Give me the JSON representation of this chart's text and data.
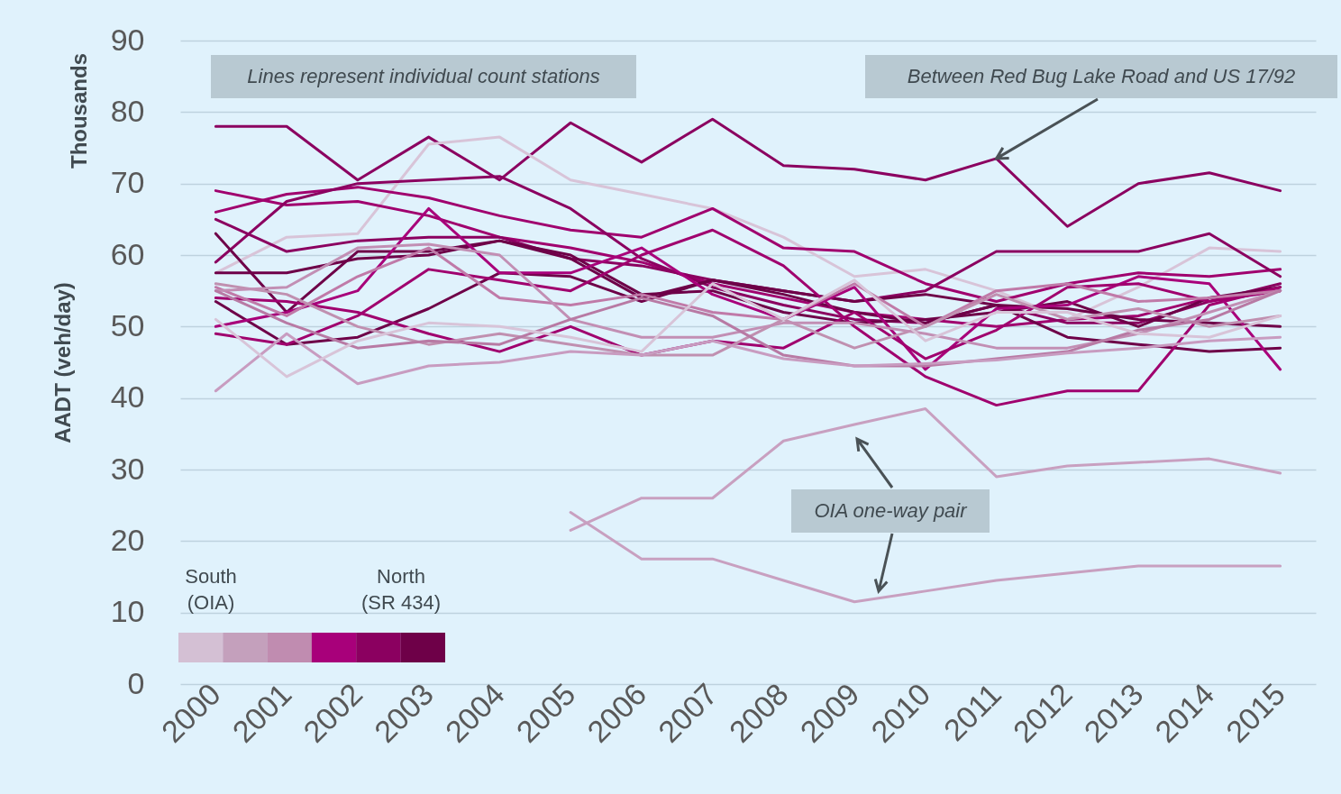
{
  "chart_data": {
    "type": "line",
    "ylabel": "AADT (veh/day)",
    "categories": [
      "2000",
      "2001",
      "2002",
      "2003",
      "2004",
      "2005",
      "2006",
      "2007",
      "2008",
      "2009",
      "2010",
      "2011",
      "2012",
      "2013",
      "2014",
      "2015"
    ],
    "ylim": [
      0,
      90
    ],
    "yticks": [
      0,
      10,
      20,
      30,
      40,
      50,
      60,
      70,
      80,
      90
    ],
    "grid": "y",
    "legend": false,
    "marker": "none",
    "line_style": "solid",
    "annotations": [
      "Lines represent individual count stations",
      {
        "text": "Between Red Bug Lake Road and US 17/92",
        "x": "2011",
        "y": 73.5
      },
      "OIA one-way pair",
      "Thousands",
      "South\n(OIA)",
      "North\n(SR 434)"
    ],
    "series": [
      {
        "color": "#8b0060",
        "values": [
          78,
          78,
          70.5,
          76.5,
          70.5,
          78.5,
          73,
          79,
          72.5,
          72,
          70.5,
          73.5,
          64,
          70,
          71.5,
          69
        ]
      },
      {
        "color": "#d8c4d8",
        "values": [
          57.5,
          62.5,
          63,
          75.5,
          76.5,
          70.5,
          68.5,
          66.5,
          62.5,
          57,
          58,
          55,
          51,
          55.5,
          61,
          60.5
        ]
      },
      {
        "color": "#a0006e",
        "values": [
          69,
          67,
          67.5,
          65.5,
          62.5,
          61,
          59,
          56,
          54,
          52,
          51,
          50,
          51,
          51.5,
          54,
          55
        ]
      },
      {
        "color": "#a0006e",
        "values": [
          66,
          68.5,
          69.5,
          68,
          65.5,
          63.5,
          62.5,
          66.5,
          61,
          60.5,
          56,
          53.5,
          56,
          57.5,
          57,
          58
        ]
      },
      {
        "color": "#8b0060",
        "values": [
          59,
          67.5,
          70,
          70.5,
          71,
          66.5,
          59.5,
          55.5,
          53,
          51,
          50.5,
          53,
          50.5,
          50.5,
          53.5,
          56
        ]
      },
      {
        "color": "#8b0060",
        "values": [
          65,
          60.5,
          62,
          62.5,
          62.5,
          59.5,
          58.5,
          56.5,
          55,
          53.5,
          55,
          60.5,
          60.5,
          60.5,
          63,
          57
        ]
      },
      {
        "color": "#6e0048",
        "values": [
          63,
          52,
          60.5,
          60.5,
          62,
          59.5,
          54,
          56.5,
          54.5,
          52,
          50.5,
          53,
          52.5,
          51,
          50.5,
          50
        ]
      },
      {
        "color": "#6e0048",
        "values": [
          57.5,
          57.5,
          59.5,
          60,
          62,
          60,
          54.5,
          55,
          52,
          50.5,
          51,
          52,
          53.5,
          50,
          54,
          55.5
        ]
      },
      {
        "color": "#6e0048",
        "values": [
          53.5,
          47.5,
          48.5,
          52.5,
          57.5,
          57,
          53.5,
          56.5,
          55,
          53.5,
          54.5,
          53,
          48.5,
          47.5,
          46.5,
          47
        ]
      },
      {
        "color": "#a0006e",
        "values": [
          49,
          47.5,
          51.5,
          58,
          56.5,
          55,
          60,
          63.5,
          58.5,
          50,
          43,
          39,
          41,
          41,
          53,
          55.5
        ]
      },
      {
        "color": "#a8007a",
        "values": [
          50,
          52,
          55,
          66.5,
          57.5,
          57.5,
          61,
          54.5,
          51,
          55.5,
          44,
          52.5,
          53,
          57,
          56,
          44
        ]
      },
      {
        "color": "#a0006e",
        "values": [
          54,
          53.5,
          52,
          49,
          46.5,
          50,
          46,
          48,
          47,
          52,
          45.5,
          49.5,
          55.5,
          56,
          53.5,
          55
        ]
      },
      {
        "color": "#c07aa8",
        "values": [
          55.5,
          51.5,
          57,
          61,
          54,
          53,
          54.5,
          52,
          51,
          56,
          50,
          55,
          56,
          53.5,
          54,
          55
        ]
      },
      {
        "color": "#c090b0",
        "values": [
          56,
          54.5,
          50,
          47.5,
          49,
          47.5,
          46,
          46,
          51,
          47,
          50,
          54.5,
          51,
          52.5,
          50,
          51.5
        ]
      },
      {
        "color": "#c28fb4",
        "values": [
          55,
          55.5,
          61,
          61.5,
          60,
          51,
          48.5,
          48.5,
          50.5,
          50.5,
          49,
          47,
          47,
          49,
          52,
          55
        ]
      },
      {
        "color": "#b87aa4",
        "values": [
          55,
          50.5,
          47,
          48,
          47.5,
          51,
          54,
          51.5,
          46,
          44.5,
          44.5,
          45.5,
          46.5,
          49.5,
          51,
          55
        ]
      },
      {
        "color": "#c89cc0",
        "values": [
          41,
          49,
          42,
          44.5,
          45,
          46.5,
          46,
          48,
          45.5,
          44.5,
          44.8,
          45.3,
          46.3,
          47,
          48,
          48.5
        ]
      },
      {
        "color": "#d8c4d8",
        "values": [
          51,
          43,
          48,
          50.5,
          50,
          48.5,
          46.5,
          56,
          51,
          56.5,
          48,
          52,
          52,
          49,
          48.5,
          51.5
        ]
      },
      {
        "color": "#c8a0c0",
        "values": [
          null,
          null,
          null,
          null,
          null,
          24,
          17.5,
          17.5,
          14.5,
          11.5,
          13,
          14.5,
          15.5,
          16.5,
          16.5,
          16.5
        ]
      },
      {
        "color": "#c8a0c0",
        "values": [
          null,
          null,
          null,
          null,
          null,
          21.5,
          26,
          26,
          34,
          36.3,
          38.5,
          29,
          30.5,
          31,
          31.5,
          29.5
        ]
      }
    ]
  }
}
